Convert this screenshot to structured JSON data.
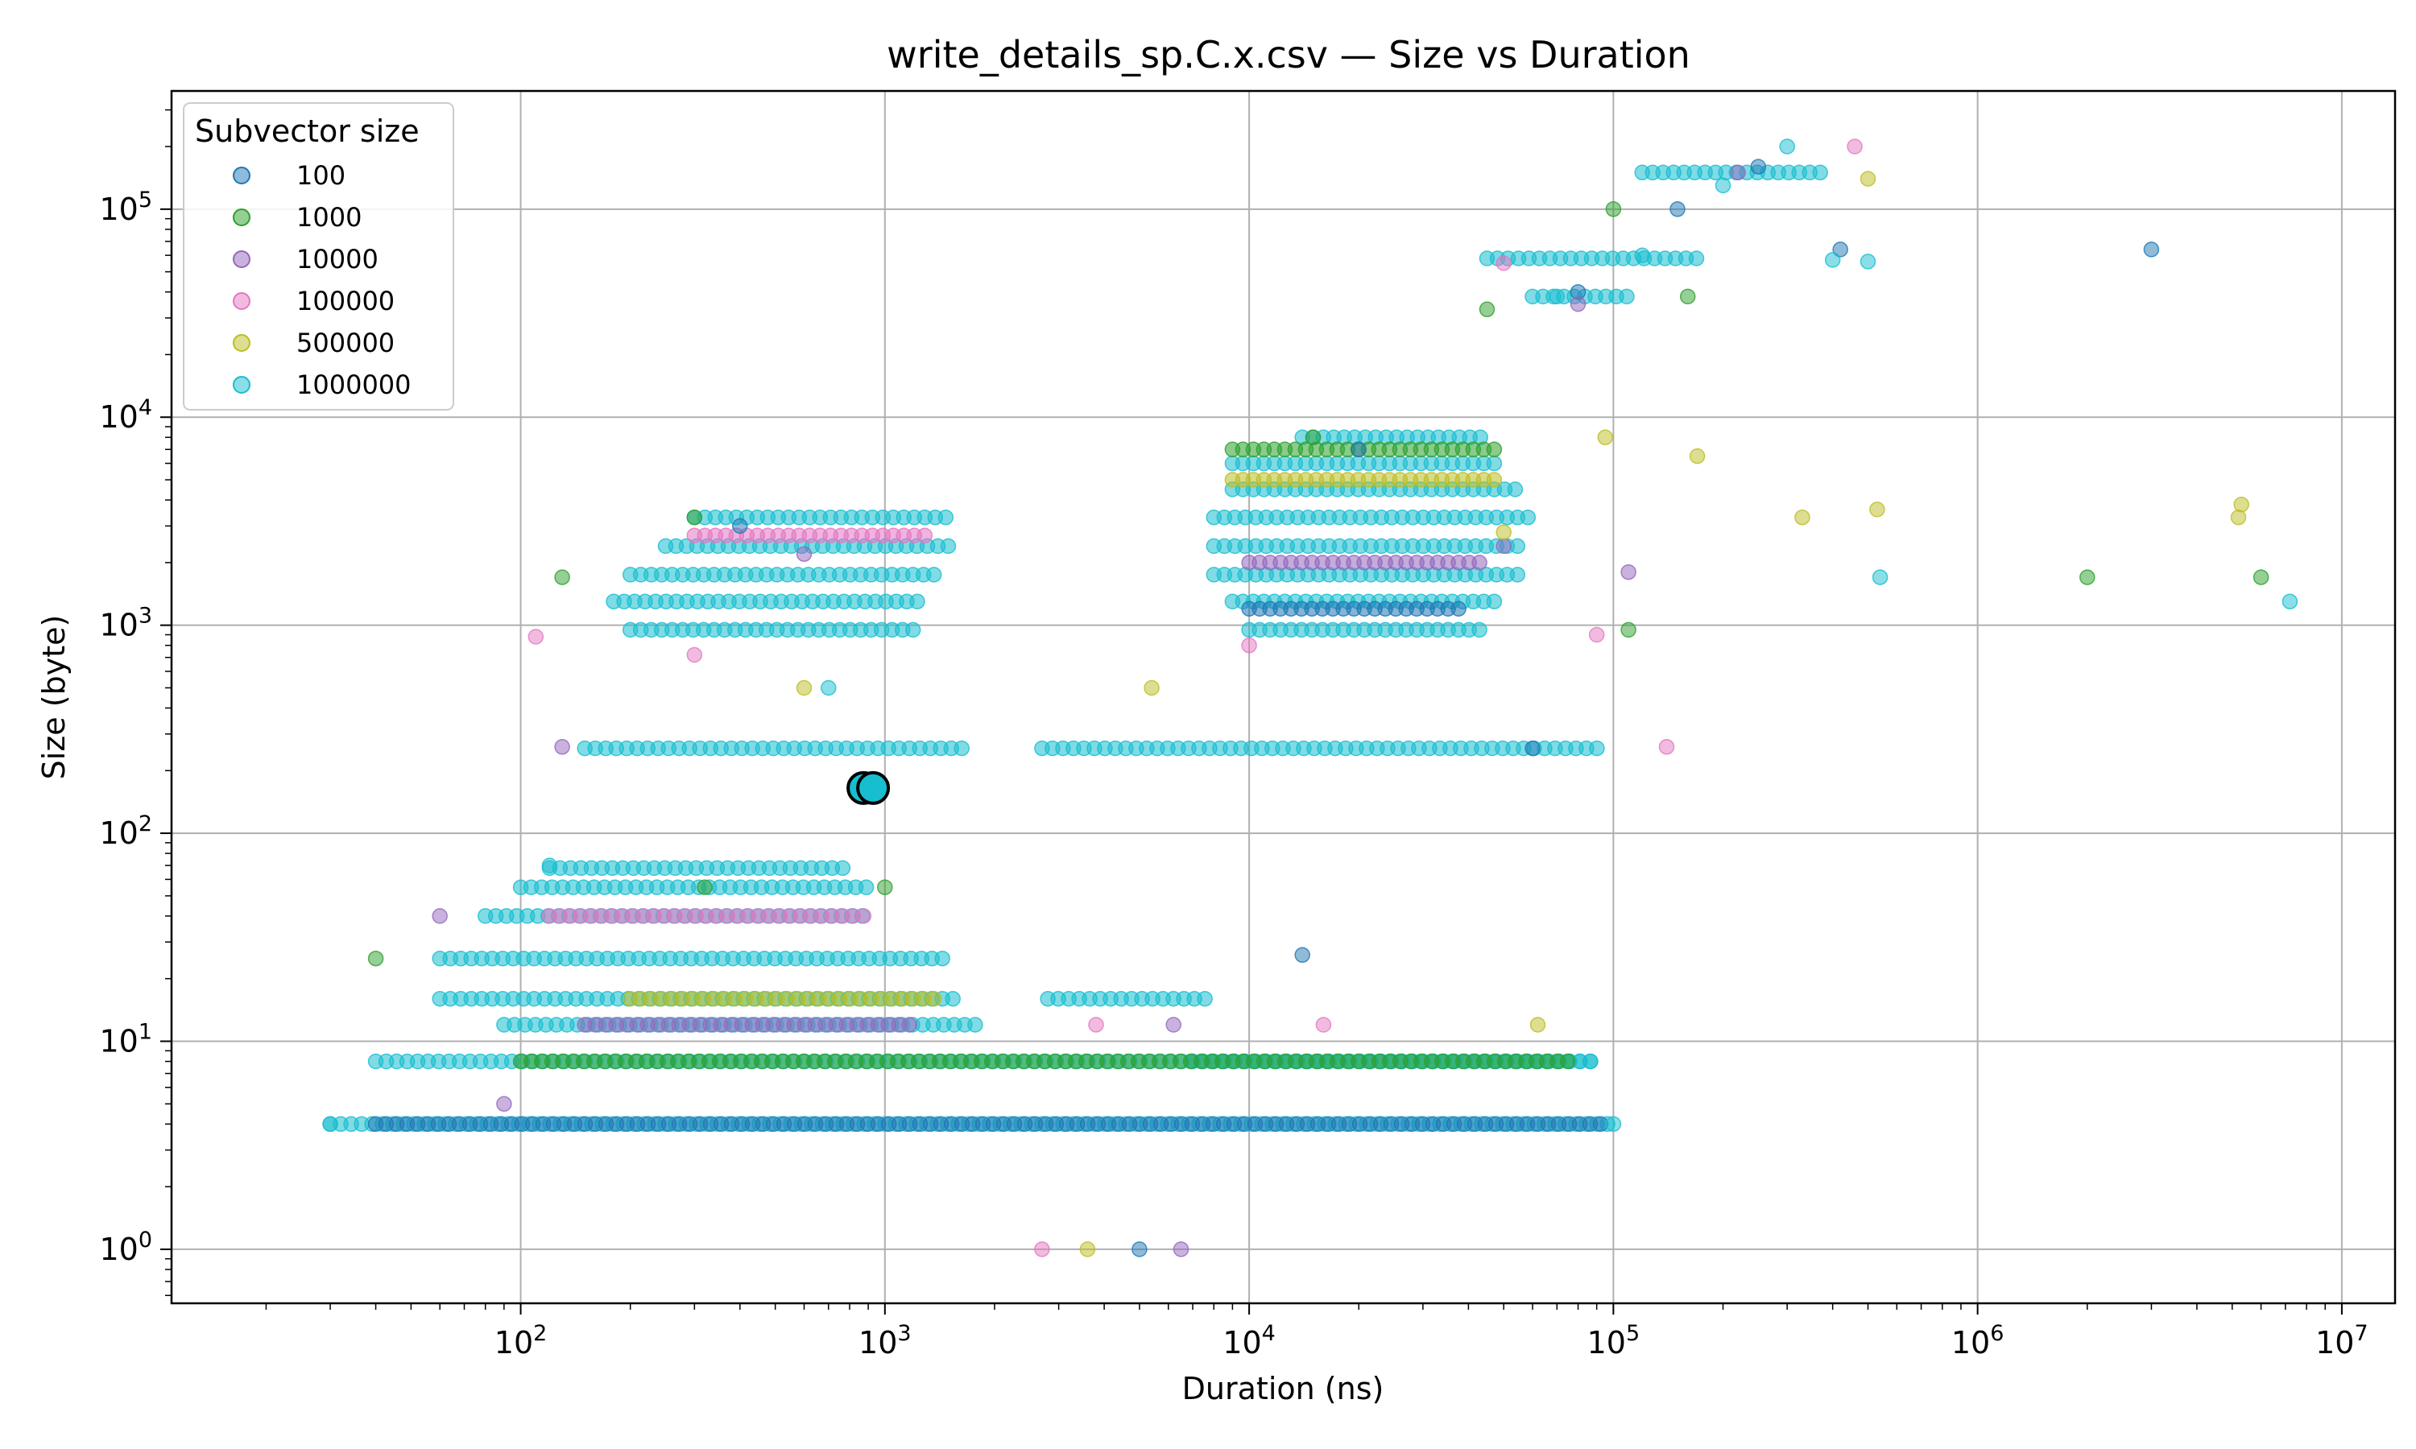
{
  "chart_data": {
    "type": "scatter",
    "title": "write_details_sp.C.x.csv — Size vs Duration",
    "xlabel": "Duration (ns)",
    "ylabel": "Size (byte)",
    "xscale": "log",
    "yscale": "log",
    "xlim": [
      11,
      14000000
    ],
    "ylim": [
      0.55,
      370000
    ],
    "grid": true,
    "legend": {
      "title": "Subvector size",
      "placement": "top-left"
    },
    "x_ticks": [
      {
        "base": "10",
        "exp": "2",
        "value": 100
      },
      {
        "base": "10",
        "exp": "3",
        "value": 1000
      },
      {
        "base": "10",
        "exp": "4",
        "value": 10000
      },
      {
        "base": "10",
        "exp": "5",
        "value": 100000
      },
      {
        "base": "10",
        "exp": "6",
        "value": 1000000
      },
      {
        "base": "10",
        "exp": "7",
        "value": 10000000
      }
    ],
    "y_ticks": [
      {
        "base": "10",
        "exp": "0",
        "value": 1
      },
      {
        "base": "10",
        "exp": "1",
        "value": 10
      },
      {
        "base": "10",
        "exp": "2",
        "value": 100
      },
      {
        "base": "10",
        "exp": "3",
        "value": 1000
      },
      {
        "base": "10",
        "exp": "4",
        "value": 10000
      },
      {
        "base": "10",
        "exp": "5",
        "value": 100000
      }
    ],
    "series": [
      {
        "name": "100",
        "color": "#1f77b4",
        "points": [
          [
            3000000,
            64000
          ],
          [
            420000,
            64000
          ],
          [
            5000,
            1
          ],
          [
            60000,
            256
          ],
          [
            14000,
            26
          ],
          [
            150000,
            100000
          ],
          [
            250000,
            160000
          ],
          [
            80000,
            40000
          ],
          [
            20000,
            7000
          ],
          [
            400,
            3000
          ]
        ]
      },
      {
        "name": "1000",
        "color": "#2ca02c",
        "points": [
          [
            40,
            25
          ],
          [
            2000000,
            1700
          ],
          [
            6000000,
            1700
          ],
          [
            110000,
            950
          ],
          [
            320,
            55
          ],
          [
            1000,
            55
          ],
          [
            160000,
            38000
          ],
          [
            100000,
            100000
          ],
          [
            45000,
            33000
          ],
          [
            15000,
            8000
          ],
          [
            300,
            3300
          ],
          [
            130,
            1700
          ]
        ]
      },
      {
        "name": "10000",
        "color": "#9467bd",
        "points": [
          [
            60,
            40
          ],
          [
            90,
            5
          ],
          [
            6500,
            1
          ],
          [
            6200,
            12
          ],
          [
            110000,
            1800
          ],
          [
            50000,
            2400
          ],
          [
            80000,
            35000
          ],
          [
            220000,
            150000
          ],
          [
            130,
            260
          ],
          [
            600,
            2200
          ]
        ]
      },
      {
        "name": "100000",
        "color": "#e377c2",
        "points": [
          [
            110,
            880
          ],
          [
            140000,
            260
          ],
          [
            2700,
            1
          ],
          [
            3800,
            12
          ],
          [
            16000,
            12
          ],
          [
            50000,
            55000
          ],
          [
            460000,
            200000
          ],
          [
            300,
            720
          ],
          [
            10000,
            800
          ],
          [
            90000,
            900
          ]
        ]
      },
      {
        "name": "500000",
        "color": "#bcbd22",
        "points": [
          [
            5300000,
            3800
          ],
          [
            5200000,
            3300
          ],
          [
            530000,
            3600
          ],
          [
            330000,
            3300
          ],
          [
            170000,
            6500
          ],
          [
            3600,
            1
          ],
          [
            5400,
            500
          ],
          [
            600,
            500
          ],
          [
            95000,
            8000
          ],
          [
            62000,
            12
          ],
          [
            500000,
            140000
          ],
          [
            50000,
            2800
          ]
        ]
      },
      {
        "name": "1000000",
        "color": "#17becf",
        "points": [
          [
            7200000,
            1300
          ],
          [
            540000,
            1700
          ],
          [
            400000,
            57000
          ],
          [
            500000,
            56000
          ],
          [
            700,
            500
          ],
          [
            120,
            70
          ],
          [
            30,
            4
          ],
          [
            100000,
            4
          ],
          [
            300000,
            200000
          ],
          [
            200000,
            130000
          ],
          [
            120000,
            60000
          ],
          [
            70000,
            38000
          ]
        ]
      }
    ],
    "bands": [
      {
        "series": 5,
        "xmin": 30,
        "xmax": 100000,
        "y": 4
      },
      {
        "series": 5,
        "xmin": 40,
        "xmax": 90000,
        "y": 8
      },
      {
        "series": 5,
        "xmin": 90,
        "xmax": 1800,
        "y": 12
      },
      {
        "series": 5,
        "xmin": 60,
        "xmax": 1600,
        "y": 16
      },
      {
        "series": 5,
        "xmin": 60,
        "xmax": 1500,
        "y": 25
      },
      {
        "series": 5,
        "xmin": 80,
        "xmax": 900,
        "y": 40
      },
      {
        "series": 5,
        "xmin": 100,
        "xmax": 900,
        "y": 55
      },
      {
        "series": 5,
        "xmin": 120,
        "xmax": 800,
        "y": 68
      },
      {
        "series": 5,
        "xmin": 150,
        "xmax": 1700,
        "y": 256
      },
      {
        "series": 5,
        "xmin": 2700,
        "xmax": 95000,
        "y": 256
      },
      {
        "series": 5,
        "xmin": 2800,
        "xmax": 8000,
        "y": 16
      },
      {
        "series": 5,
        "xmin": 7000,
        "xmax": 90000,
        "y": 8
      },
      {
        "series": 5,
        "xmin": 200,
        "xmax": 1200,
        "y": 950
      },
      {
        "series": 5,
        "xmin": 180,
        "xmax": 1300,
        "y": 1300
      },
      {
        "series": 5,
        "xmin": 200,
        "xmax": 1400,
        "y": 1750
      },
      {
        "series": 5,
        "xmin": 250,
        "xmax": 1500,
        "y": 2400
      },
      {
        "series": 5,
        "xmin": 300,
        "xmax": 1500,
        "y": 3300
      },
      {
        "series": 5,
        "xmin": 10000,
        "xmax": 45000,
        "y": 950
      },
      {
        "series": 5,
        "xmin": 9000,
        "xmax": 50000,
        "y": 1300
      },
      {
        "series": 5,
        "xmin": 8000,
        "xmax": 55000,
        "y": 1750
      },
      {
        "series": 5,
        "xmin": 8000,
        "xmax": 55000,
        "y": 2400
      },
      {
        "series": 5,
        "xmin": 8000,
        "xmax": 60000,
        "y": 3300
      },
      {
        "series": 5,
        "xmin": 9000,
        "xmax": 55000,
        "y": 4500
      },
      {
        "series": 5,
        "xmin": 9000,
        "xmax": 50000,
        "y": 6000
      },
      {
        "series": 5,
        "xmin": 14000,
        "xmax": 45000,
        "y": 8000
      },
      {
        "series": 5,
        "xmin": 45000,
        "xmax": 170000,
        "y": 58000
      },
      {
        "series": 5,
        "xmin": 60000,
        "xmax": 110000,
        "y": 38000
      },
      {
        "series": 5,
        "xmin": 120000,
        "xmax": 380000,
        "y": 150000
      },
      {
        "series": 0,
        "xmin": 40,
        "xmax": 95000,
        "y": 4
      },
      {
        "series": 1,
        "xmin": 100,
        "xmax": 80000,
        "y": 8
      },
      {
        "series": 2,
        "xmin": 150,
        "xmax": 1200,
        "y": 12
      },
      {
        "series": 3,
        "xmin": 120,
        "xmax": 900,
        "y": 40
      },
      {
        "series": 4,
        "xmin": 200,
        "xmax": 1400,
        "y": 16
      },
      {
        "series": 4,
        "xmin": 9000,
        "xmax": 50000,
        "y": 5000
      },
      {
        "series": 1,
        "xmin": 9000,
        "xmax": 50000,
        "y": 7000
      },
      {
        "series": 2,
        "xmin": 10000,
        "xmax": 45000,
        "y": 2000
      },
      {
        "series": 3,
        "xmin": 300,
        "xmax": 1300,
        "y": 2700
      },
      {
        "series": 0,
        "xmin": 10000,
        "xmax": 40000,
        "y": 1200
      }
    ],
    "highlight": {
      "x": 900,
      "y": 165,
      "color": "#17becf"
    }
  }
}
